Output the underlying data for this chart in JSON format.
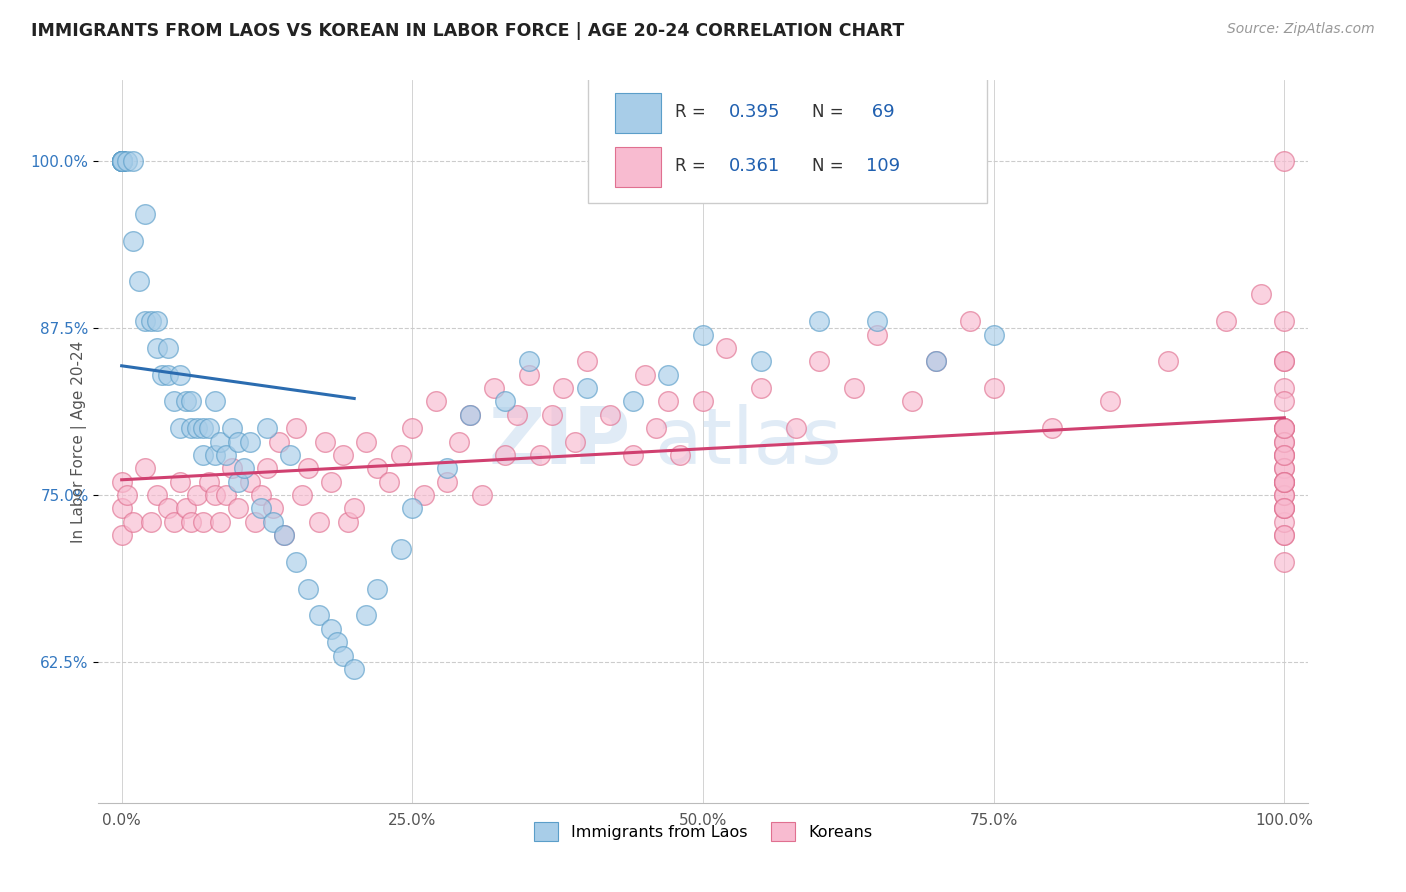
{
  "title": "IMMIGRANTS FROM LAOS VS KOREAN IN LABOR FORCE | AGE 20-24 CORRELATION CHART",
  "source_text": "Source: ZipAtlas.com",
  "ylabel": "In Labor Force | Age 20-24",
  "x_ticks": [
    0.0,
    25.0,
    50.0,
    75.0,
    100.0
  ],
  "x_tick_labels": [
    "0.0%",
    "25.0%",
    "50.0%",
    "75.0%",
    "100.0%"
  ],
  "y_ticks": [
    0.625,
    0.75,
    0.875,
    1.0
  ],
  "y_tick_labels": [
    "62.5%",
    "75.0%",
    "87.5%",
    "100.0%"
  ],
  "y_lim": [
    0.52,
    1.06
  ],
  "x_lim": [
    -2.0,
    102.0
  ],
  "laos_color": "#a8cde8",
  "laos_edge_color": "#5b9ec9",
  "korean_color": "#f8bbd0",
  "korean_edge_color": "#e07090",
  "laos_R": 0.395,
  "laos_N": 69,
  "korean_R": 0.361,
  "korean_N": 109,
  "blue_line_color": "#2b6cb0",
  "pink_line_color": "#d04070",
  "watermark_zip": "ZIP",
  "watermark_atlas": "atlas",
  "watermark_color": "#d0e4f5",
  "legend_R_color": "#2060b0",
  "legend_N_color": "#2060b0",
  "laos_x": [
    0.0,
    0.0,
    0.0,
    0.0,
    0.0,
    0.0,
    0.0,
    0.0,
    0.0,
    0.5,
    1.0,
    1.0,
    1.5,
    2.0,
    2.0,
    2.5,
    3.0,
    3.0,
    3.5,
    4.0,
    4.0,
    4.5,
    5.0,
    5.0,
    5.5,
    6.0,
    6.0,
    6.5,
    7.0,
    7.0,
    7.5,
    8.0,
    8.0,
    8.5,
    9.0,
    9.5,
    10.0,
    10.0,
    10.5,
    11.0,
    12.0,
    12.5,
    13.0,
    14.0,
    14.5,
    15.0,
    16.0,
    17.0,
    18.0,
    18.5,
    19.0,
    20.0,
    21.0,
    22.0,
    24.0,
    25.0,
    28.0,
    30.0,
    33.0,
    35.0,
    40.0,
    44.0,
    47.0,
    50.0,
    55.0,
    60.0,
    65.0,
    70.0,
    75.0
  ],
  "laos_y": [
    1.0,
    1.0,
    1.0,
    1.0,
    1.0,
    1.0,
    1.0,
    1.0,
    1.0,
    1.0,
    0.94,
    1.0,
    0.91,
    0.88,
    0.96,
    0.88,
    0.88,
    0.86,
    0.84,
    0.86,
    0.84,
    0.82,
    0.8,
    0.84,
    0.82,
    0.8,
    0.82,
    0.8,
    0.78,
    0.8,
    0.8,
    0.78,
    0.82,
    0.79,
    0.78,
    0.8,
    0.76,
    0.79,
    0.77,
    0.79,
    0.74,
    0.8,
    0.73,
    0.72,
    0.78,
    0.7,
    0.68,
    0.66,
    0.65,
    0.64,
    0.63,
    0.62,
    0.66,
    0.68,
    0.71,
    0.74,
    0.77,
    0.81,
    0.82,
    0.85,
    0.83,
    0.82,
    0.84,
    0.87,
    0.85,
    0.88,
    0.88,
    0.85,
    0.87
  ],
  "korean_x": [
    0.0,
    0.0,
    0.0,
    0.5,
    1.0,
    2.0,
    2.5,
    3.0,
    4.0,
    4.5,
    5.0,
    5.5,
    6.0,
    6.5,
    7.0,
    7.5,
    8.0,
    8.5,
    9.0,
    9.5,
    10.0,
    11.0,
    11.5,
    12.0,
    12.5,
    13.0,
    13.5,
    14.0,
    15.0,
    15.5,
    16.0,
    17.0,
    17.5,
    18.0,
    19.0,
    19.5,
    20.0,
    21.0,
    22.0,
    23.0,
    24.0,
    25.0,
    26.0,
    27.0,
    28.0,
    29.0,
    30.0,
    31.0,
    32.0,
    33.0,
    34.0,
    35.0,
    36.0,
    37.0,
    38.0,
    39.0,
    40.0,
    42.0,
    44.0,
    45.0,
    46.0,
    47.0,
    48.0,
    50.0,
    52.0,
    55.0,
    58.0,
    60.0,
    63.0,
    65.0,
    68.0,
    70.0,
    73.0,
    75.0,
    80.0,
    85.0,
    90.0,
    95.0,
    98.0,
    100.0,
    100.0,
    100.0,
    100.0,
    100.0,
    100.0,
    100.0,
    100.0,
    100.0,
    100.0,
    100.0,
    100.0,
    100.0,
    100.0,
    100.0,
    100.0,
    100.0,
    100.0,
    100.0,
    100.0,
    100.0,
    100.0,
    100.0,
    100.0,
    100.0,
    100.0,
    100.0,
    100.0,
    100.0,
    100.0
  ],
  "korean_y": [
    0.76,
    0.74,
    0.72,
    0.75,
    0.73,
    0.77,
    0.73,
    0.75,
    0.74,
    0.73,
    0.76,
    0.74,
    0.73,
    0.75,
    0.73,
    0.76,
    0.75,
    0.73,
    0.75,
    0.77,
    0.74,
    0.76,
    0.73,
    0.75,
    0.77,
    0.74,
    0.79,
    0.72,
    0.8,
    0.75,
    0.77,
    0.73,
    0.79,
    0.76,
    0.78,
    0.73,
    0.74,
    0.79,
    0.77,
    0.76,
    0.78,
    0.8,
    0.75,
    0.82,
    0.76,
    0.79,
    0.81,
    0.75,
    0.83,
    0.78,
    0.81,
    0.84,
    0.78,
    0.81,
    0.83,
    0.79,
    0.85,
    0.81,
    0.78,
    0.84,
    0.8,
    0.82,
    0.78,
    0.82,
    0.86,
    0.83,
    0.8,
    0.85,
    0.83,
    0.87,
    0.82,
    0.85,
    0.88,
    0.83,
    0.8,
    0.82,
    0.85,
    0.88,
    0.9,
    0.75,
    0.78,
    0.8,
    0.76,
    0.72,
    0.74,
    0.77,
    0.79,
    0.73,
    0.76,
    0.8,
    0.74,
    0.78,
    0.72,
    0.7,
    0.83,
    0.77,
    0.8,
    0.75,
    0.79,
    0.85,
    0.82,
    0.76,
    0.8,
    0.88,
    0.85,
    0.76,
    0.74,
    0.78,
    1.0
  ]
}
